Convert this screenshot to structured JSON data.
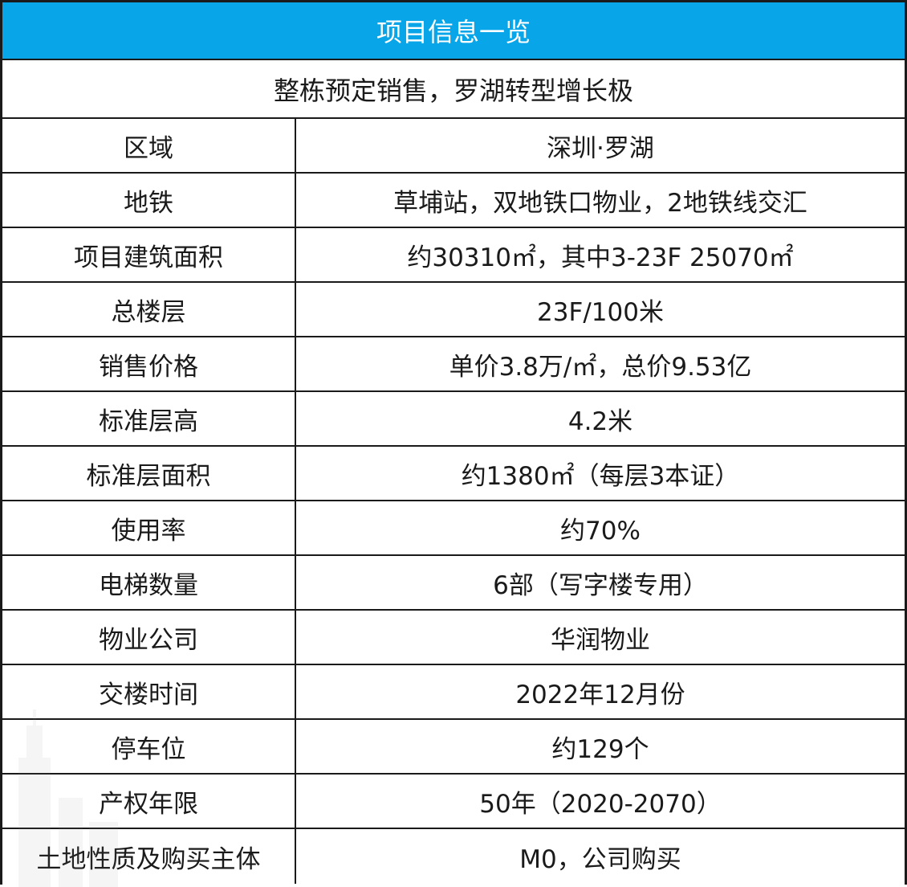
{
  "title": "项目信息一览",
  "subtitle": "整栋预定销售，罗湖转型增长极",
  "rows": [
    {
      "label": "区域",
      "value": "深圳·罗湖"
    },
    {
      "label": "地铁",
      "value": "草埔站，双地铁口物业，2地铁线交汇"
    },
    {
      "label": "项目建筑面积",
      "value": "约30310㎡，其中3-23F 25070㎡"
    },
    {
      "label": "总楼层",
      "value": "23F/100米"
    },
    {
      "label": "销售价格",
      "value": "单价3.8万/㎡，总价9.53亿"
    },
    {
      "label": "标准层高",
      "value": "4.2米"
    },
    {
      "label": "标准层面积",
      "value": "约1380㎡（每层3本证）"
    },
    {
      "label": "使用率",
      "value": "约70%"
    },
    {
      "label": "电梯数量",
      "value": "6部（写字楼专用）"
    },
    {
      "label": "物业公司",
      "value": "华润物业"
    },
    {
      "label": "交楼时间",
      "value": "2022年12月份"
    },
    {
      "label": "停车位",
      "value": "约129个"
    },
    {
      "label": "产权年限",
      "value": "50年（2020-2070）"
    },
    {
      "label": "土地性质及购买主体",
      "value": "M0，公司购买"
    }
  ],
  "colors": {
    "header_bg": "#08a6e8",
    "header_text": "#ffffff",
    "grid_line": "#1a1a1a"
  }
}
